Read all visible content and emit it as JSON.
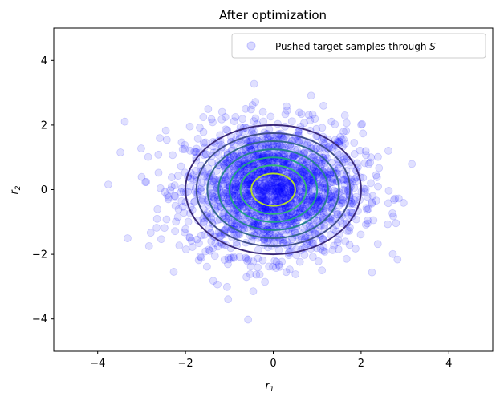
{
  "chart_data": {
    "type": "scatter",
    "title": "After optimization",
    "xlabel": "r",
    "xlabel_sub": "1",
    "ylabel": "r",
    "ylabel_sub": "2",
    "xlim": [
      -5,
      5
    ],
    "ylim": [
      -5,
      5
    ],
    "xticks": [
      -4,
      -2,
      0,
      2,
      4
    ],
    "yticks": [
      -4,
      -2,
      0,
      2,
      4
    ],
    "xtick_labels": [
      "−4",
      "−2",
      "0",
      "2",
      "4"
    ],
    "ytick_labels": [
      "−4",
      "−2",
      "0",
      "2",
      "4"
    ],
    "grid": false,
    "legend": {
      "placement": "top-right",
      "label": "Pushed target samples through ",
      "label_math": "S"
    },
    "series": [
      {
        "name": "Pushed target samples through S",
        "kind": "scatter",
        "color": "#0000ff",
        "alpha": 0.12,
        "distribution": "standard normal 2D, approx 2000 samples, centered at (0, 0)",
        "count": 2000
      }
    ],
    "contours": {
      "center": [
        0,
        0
      ],
      "shape": "concentric circles",
      "radii": [
        2.0,
        1.75,
        1.5,
        1.25,
        1.0,
        0.75,
        0.5
      ],
      "colors": [
        "#3b2a7a",
        "#3f4e8a",
        "#33688d",
        "#25828e",
        "#1fa187",
        "#35b779",
        "#b5de2b"
      ]
    }
  }
}
